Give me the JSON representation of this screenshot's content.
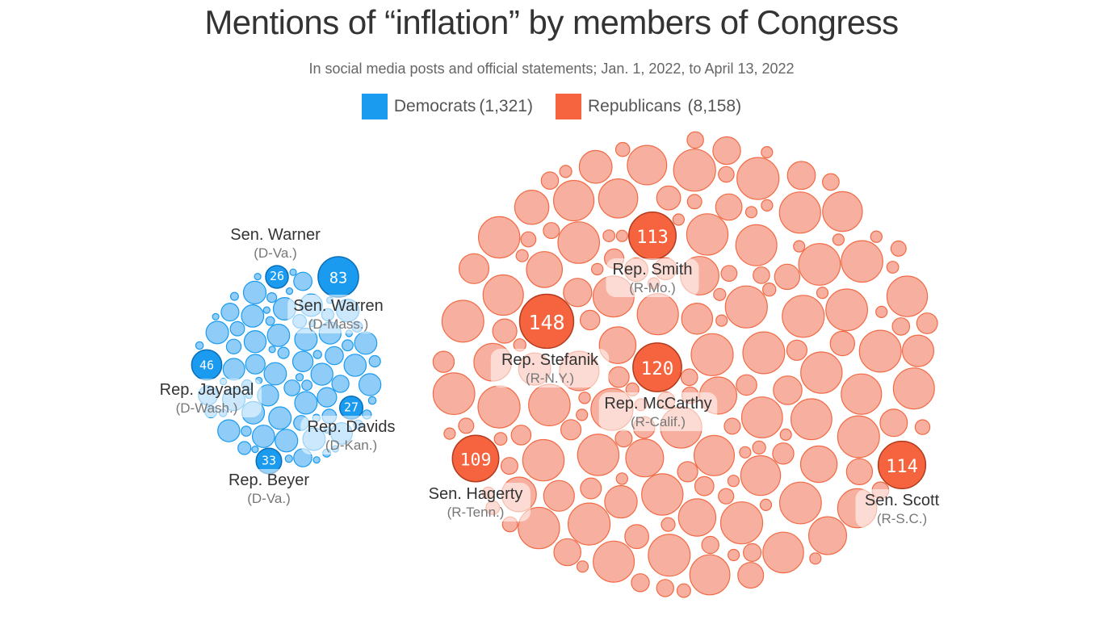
{
  "chart_data": {
    "type": "packed-bubble",
    "title": "Mentions of “inflation” by members of Congress",
    "subtitle": "In social media posts and official statements;  Jan. 1, 2022, to April 13, 2022",
    "legend": [
      {
        "label": "Democrats",
        "total": "(1,321)",
        "color": "#1a9bf0"
      },
      {
        "label": "Republicans",
        "total": "(8,158)",
        "color": "#f5643f"
      }
    ],
    "highlighted": [
      {
        "party": "D",
        "name": "Sen. Warner",
        "affil": "(D-Va.)",
        "value": 26
      },
      {
        "party": "D",
        "name": "Sen. Warren",
        "affil": "(D-Mass.)",
        "value": 83
      },
      {
        "party": "D",
        "name": "Rep. Jayapal",
        "affil": "(D-Wash.)",
        "value": 46
      },
      {
        "party": "D",
        "name": "Rep. Davids",
        "affil": "(D-Kan.)",
        "value": 27
      },
      {
        "party": "D",
        "name": "Rep. Beyer",
        "affil": "(D-Va.)",
        "value": 33
      },
      {
        "party": "R",
        "name": "Rep. Smith",
        "affil": "(R-Mo.)",
        "value": 113
      },
      {
        "party": "R",
        "name": "Rep. Stefanik",
        "affil": "(R-N.Y.)",
        "value": 148
      },
      {
        "party": "R",
        "name": "Rep. McCarthy",
        "affil": "(R-Calif.)",
        "value": 120
      },
      {
        "party": "R",
        "name": "Sen. Hagerty",
        "affil": "(R-Tenn.)",
        "value": 109
      },
      {
        "party": "R",
        "name": "Sen. Scott",
        "affil": "(R-S.C.)",
        "value": 114
      }
    ],
    "colors": {
      "dem_light": "#8fcdf8",
      "dem_stroke": "#1a9bf0",
      "dem_dark": "#1a9bf0",
      "rep_light": "#f7b0a0",
      "rep_stroke": "#f26a45",
      "rep_dark": "#f5643f"
    }
  }
}
